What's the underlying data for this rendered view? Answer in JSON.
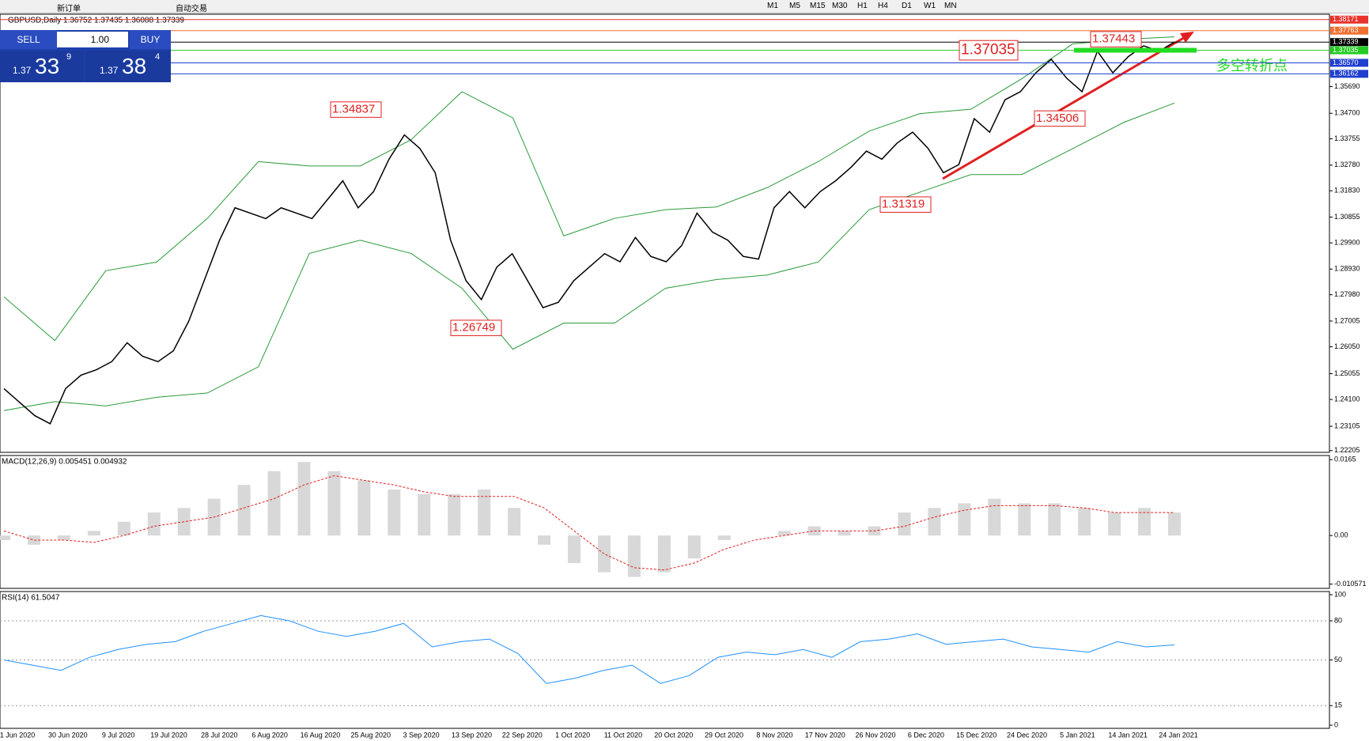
{
  "toolbar": {
    "items": [
      "新订单",
      "自动交易",
      "M1",
      "M5",
      "M15",
      "M30",
      "H1",
      "H4",
      "D1",
      "W1",
      "MN"
    ]
  },
  "header": "GBPUSD,Daily 1.36752 1.37435 1.36088 1.37339",
  "trade_panel": {
    "sell": "SELL",
    "lot": "1.00",
    "buy": "BUY",
    "bid": {
      "big": "1.37",
      "main": "33",
      "small": "9"
    },
    "ask": {
      "big": "1.37",
      "main": "38",
      "small": "4"
    }
  },
  "price_chart": {
    "ylim": [
      1.2214,
      1.3837
    ],
    "yticks": [
      {
        "value": 1.3569,
        "label": "1.35690"
      },
      {
        "value": 1.347,
        "label": "1.34700"
      },
      1.33755,
      {
        "value": 1.3278,
        "label": "1.32780"
      },
      {
        "value": 1.3183,
        "label": "1.31830"
      },
      1.30855,
      {
        "value": 1.299,
        "label": "1.29900"
      },
      {
        "value": 1.2893,
        "label": "1.28930"
      },
      {
        "value": 1.2798,
        "label": "1.27980"
      },
      1.27005,
      {
        "value": 1.2605,
        "label": "1.26050"
      },
      1.25055,
      {
        "value": 1.241,
        "label": "1.24100"
      },
      1.23105,
      1.22205
    ],
    "closes": [
      1.245,
      1.24,
      1.235,
      1.232,
      1.245,
      1.25,
      1.252,
      1.255,
      1.262,
      1.257,
      1.255,
      1.259,
      1.27,
      1.285,
      1.3,
      1.312,
      1.31,
      1.308,
      1.312,
      1.31,
      1.308,
      1.315,
      1.322,
      1.312,
      1.318,
      1.33,
      1.339,
      1.334,
      1.325,
      1.3,
      1.285,
      1.278,
      1.29,
      1.295,
      1.285,
      1.275,
      1.277,
      1.285,
      1.29,
      1.295,
      1.292,
      1.301,
      1.294,
      1.292,
      1.298,
      1.31,
      1.303,
      1.3,
      1.294,
      1.293,
      1.312,
      1.318,
      1.312,
      1.318,
      1.322,
      1.327,
      1.333,
      1.33,
      1.336,
      1.34,
      1.334,
      1.325,
      1.328,
      1.345,
      1.34,
      1.352,
      1.355,
      1.362,
      1.367,
      1.36,
      1.355,
      1.37,
      1.362,
      1.368,
      1.372,
      1.37,
      1.37339
    ],
    "bollinger_upper": [
      1.279,
      1.2628,
      1.2887,
      1.2919,
      1.3081,
      1.3291,
      1.3275,
      1.3275,
      1.3372,
      1.355,
      1.3453,
      1.3016,
      1.3081,
      1.3113,
      1.3123,
      1.3195,
      1.3291,
      1.3404,
      1.3469,
      1.3485,
      1.3598,
      1.3727,
      1.3744,
      1.3753
    ],
    "bollinger_lower": [
      1.2369,
      1.2402,
      1.2386,
      1.2418,
      1.2434,
      1.2531,
      1.2951,
      1.3,
      1.2951,
      1.2822,
      1.2596,
      1.2693,
      1.2693,
      1.2822,
      1.2854,
      1.2871,
      1.2919,
      1.3113,
      1.3178,
      1.3243,
      1.3243,
      1.3339,
      1.3436,
      1.3508
    ],
    "levels": [
      {
        "value": 1.38171,
        "color": "#e8322c"
      },
      {
        "value": 1.37763,
        "color": "#f07030"
      },
      {
        "value": 1.37339,
        "color": "#000000"
      },
      {
        "value": 1.37035,
        "color": "#22cc22"
      },
      {
        "value": {
          "value": 1.3657,
          "label": "1.36570"
        },
        "color": "#1f3fd0"
      },
      {
        "value": 1.36162,
        "color": "#1f3fd0"
      }
    ],
    "annotations": [
      1.34837,
      1.26749,
      1.31319,
      1.37035,
      1.37443,
      1.34506
    ],
    "note": "多空转折点"
  },
  "macd": {
    "label": "MACD(12,26,9) 0.005451 0.004932",
    "ylim": [
      -0.0115,
      0.0174
    ],
    "yticks": [
      0.0165,
      {
        "value": 0,
        "label": "0.00"
      },
      -0.010571
    ],
    "histogram": [
      -0.001,
      -0.002,
      -0.001,
      0.001,
      0.003,
      0.005,
      0.006,
      0.008,
      0.011,
      0.014,
      0.016,
      0.014,
      0.012,
      0.01,
      0.009,
      0.009,
      0.01,
      0.006,
      -0.002,
      -0.006,
      -0.008,
      -0.009,
      -0.008,
      -0.005,
      -0.001,
      0,
      0.001,
      0.002,
      0.001,
      0.002,
      0.005,
      0.006,
      0.007,
      0.008,
      0.007,
      0.007,
      0.006,
      0.005,
      0.006,
      0.005
    ],
    "signal": [
      0.001,
      -0.001,
      -0.001,
      -0.0015,
      0,
      0.002,
      0.003,
      0.004,
      0.006,
      0.008,
      0.011,
      0.013,
      0.012,
      0.011,
      0.0095,
      0.0085,
      0.0085,
      0.0085,
      0.006,
      0.001,
      -0.004,
      -0.007,
      -0.0075,
      -0.006,
      -0.003,
      -0.001,
      0,
      0.001,
      0.001,
      0.001,
      0.002,
      0.004,
      0.0055,
      0.0065,
      0.0065,
      0.0065,
      0.006,
      0.005,
      0.005,
      0.005
    ]
  },
  "rsi": {
    "label": "RSI(14) 61.5047",
    "ylim": [
      0,
      100
    ],
    "yticks": [
      100,
      80,
      50,
      15,
      0
    ],
    "values": [
      50,
      46,
      42,
      52,
      58,
      62,
      64,
      72,
      78,
      84,
      80,
      72,
      68,
      72,
      78,
      60,
      64,
      66,
      55,
      32,
      36,
      42,
      46,
      32,
      38,
      52,
      56,
      54,
      58,
      52,
      64,
      66,
      70,
      62,
      64,
      66,
      60,
      58,
      56,
      64,
      60,
      61.5047
    ]
  },
  "dates": [
    "1 Jun 2020",
    "30 Jun 2020",
    "9 Jul 2020",
    "19 Jul 2020",
    "28 Jul 2020",
    "6 Aug 2020",
    "16 Aug 2020",
    "25 Aug 2020",
    "3 Sep 2020",
    "13 Sep 2020",
    "22 Sep 2020",
    "1 Oct 2020",
    "11 Oct 2020",
    "20 Oct 2020",
    "29 Oct 2020",
    "8 Nov 2020",
    "17 Nov 2020",
    "26 Nov 2020",
    "6 Dec 2020",
    "15 Dec 2020",
    "24 Dec 2020",
    "5 Jan 2021",
    "14 Jan 2021",
    "24 Jan 2021"
  ]
}
